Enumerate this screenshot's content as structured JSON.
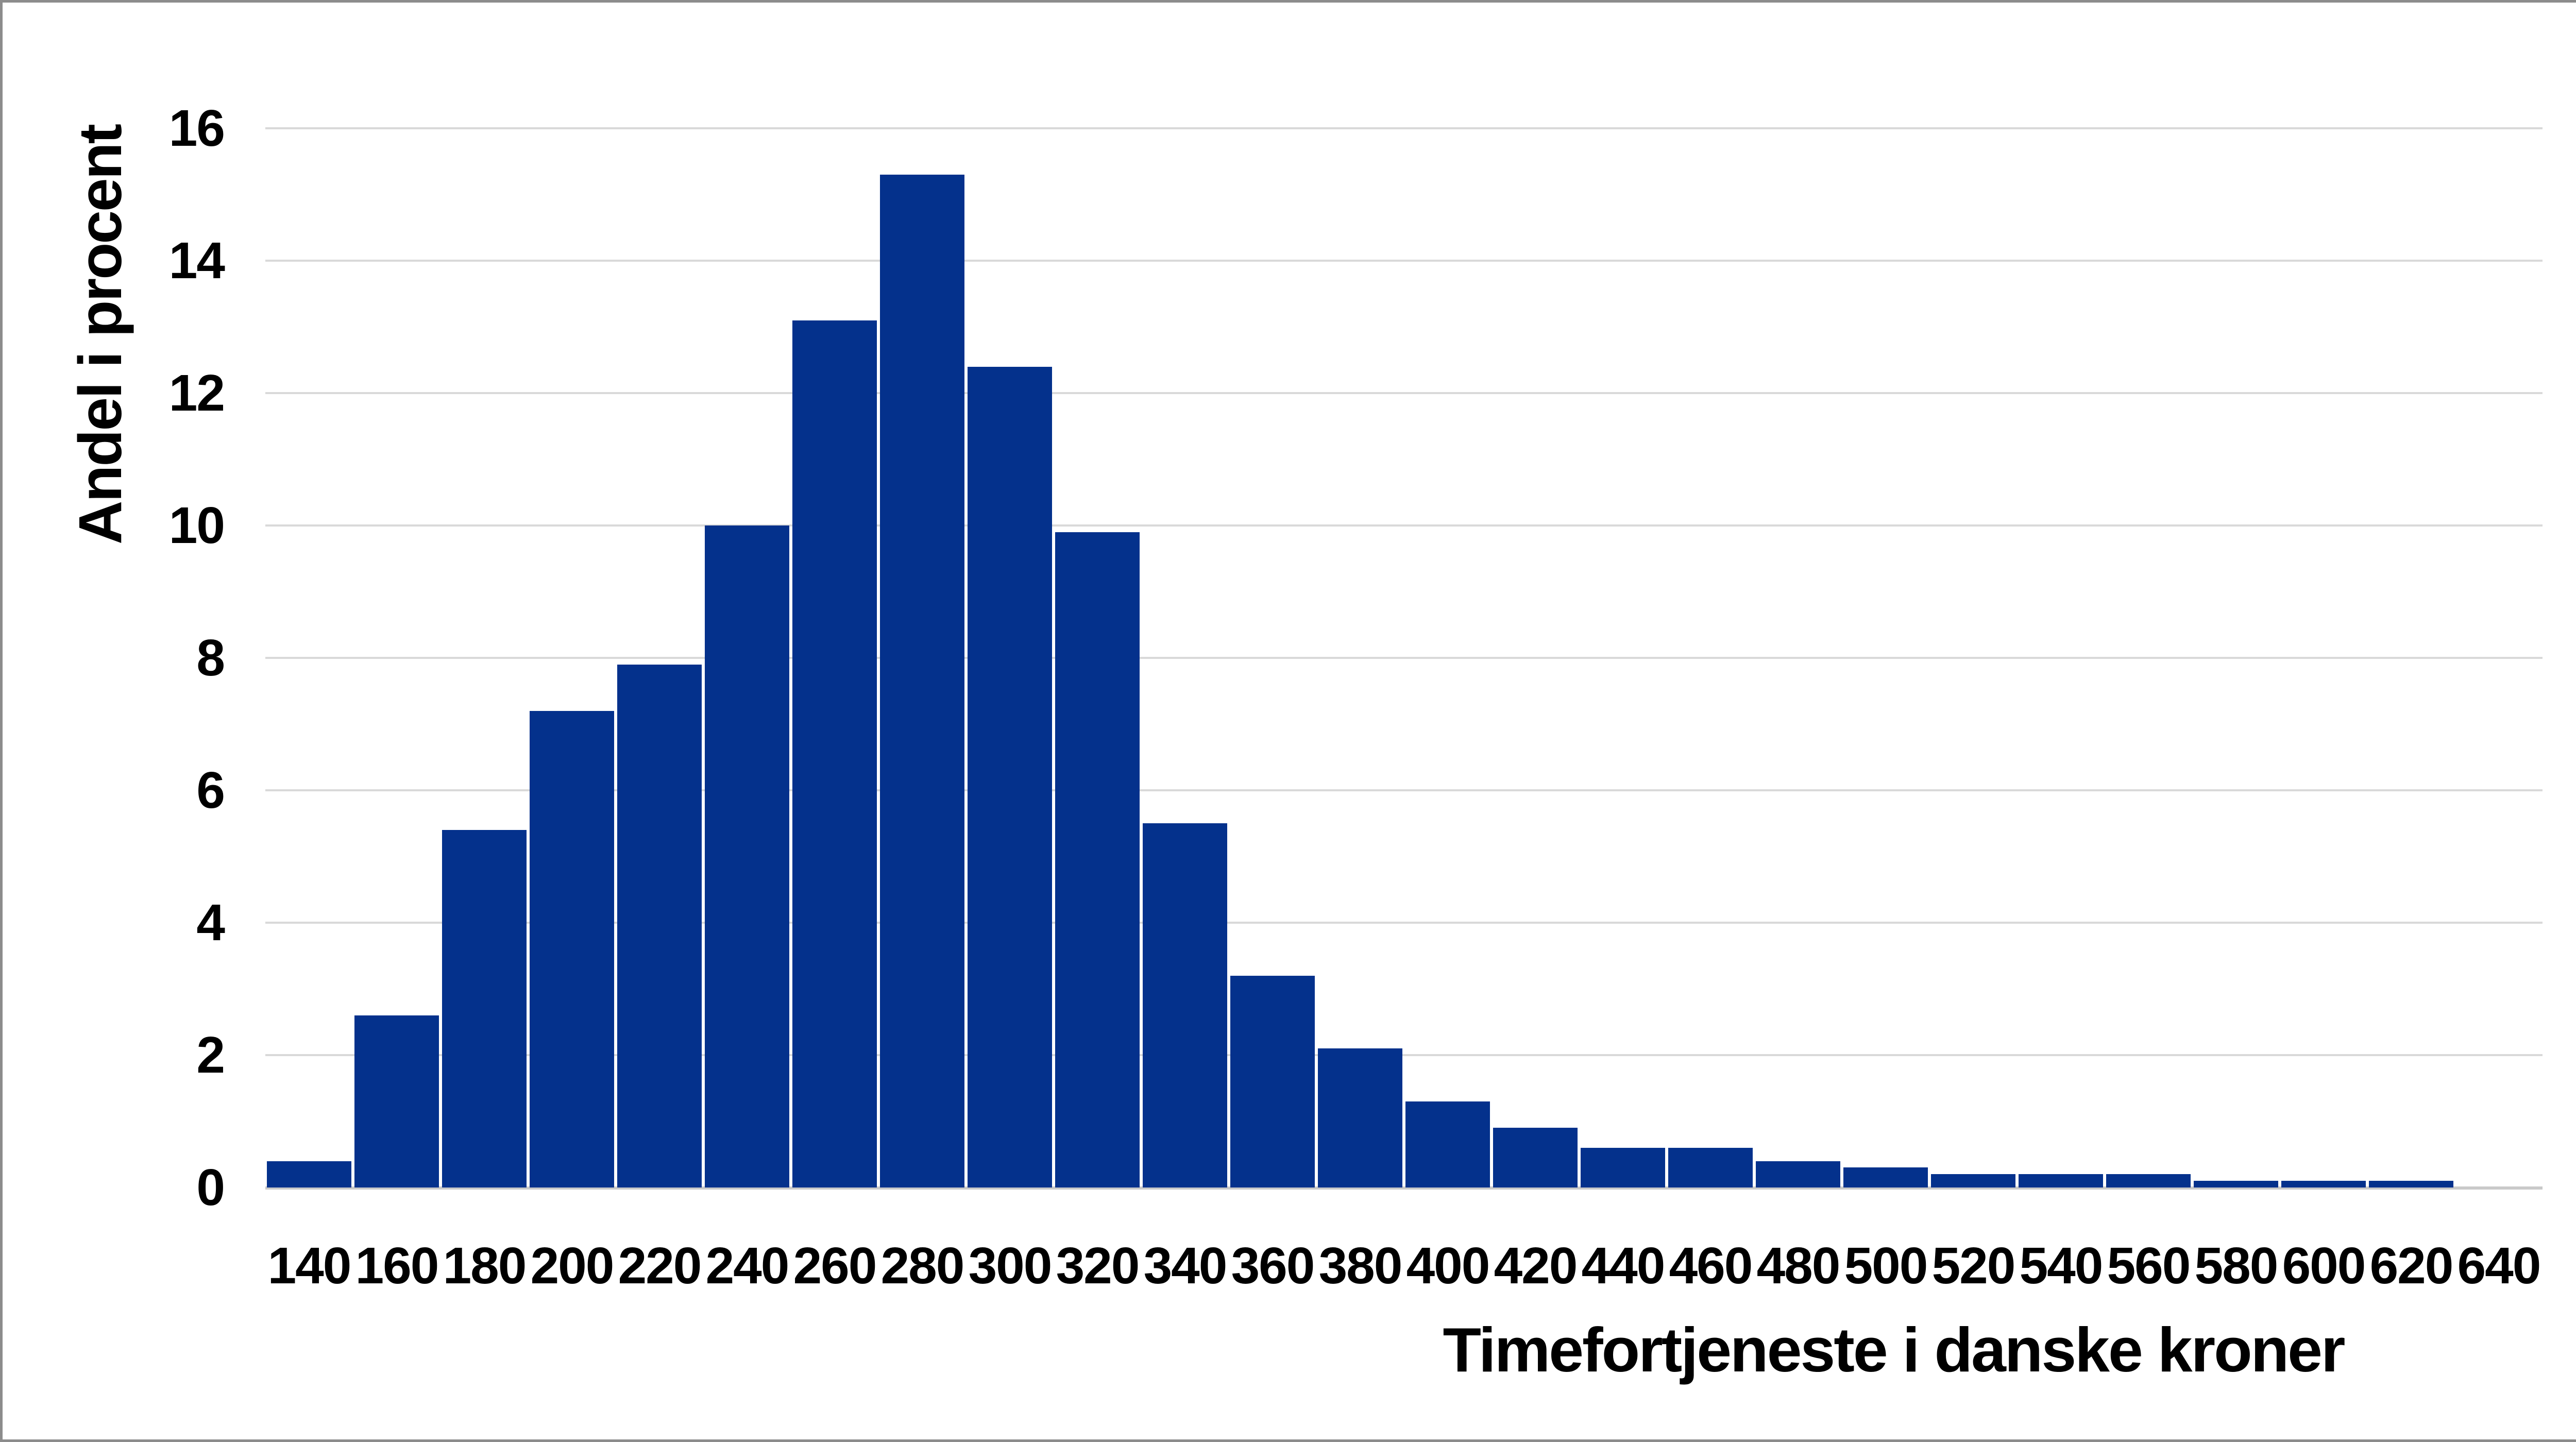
{
  "page": {
    "background_color": "#ffffff",
    "frame_border_color": "#8c8c8c"
  },
  "chart_data": {
    "type": "bar",
    "title": "",
    "xlabel": "Timefortjeneste i danske kroner",
    "ylabel": "Andel i procent",
    "categories": [
      "140",
      "160",
      "180",
      "200",
      "220",
      "240",
      "260",
      "280",
      "300",
      "320",
      "340",
      "360",
      "380",
      "400",
      "420",
      "440",
      "460",
      "480",
      "500",
      "520",
      "540",
      "560",
      "580",
      "600",
      "620",
      "640"
    ],
    "values": [
      0.4,
      2.6,
      5.4,
      7.2,
      7.9,
      10.0,
      13.1,
      15.3,
      12.4,
      9.9,
      5.5,
      3.2,
      2.1,
      1.3,
      0.9,
      0.6,
      0.6,
      0.4,
      0.3,
      0.2,
      0.2,
      0.2,
      0.1,
      0.1,
      0.1,
      0
    ],
    "ylim": [
      0,
      16
    ],
    "yticks": [
      0,
      2,
      4,
      6,
      8,
      10,
      12,
      14,
      16
    ],
    "grid": "horizontal",
    "legend": "none",
    "bar_color": "#04318c",
    "gridline_color": "#d9d9d9",
    "axisline_color": "#c9c9c9",
    "text_color": "#000000"
  }
}
